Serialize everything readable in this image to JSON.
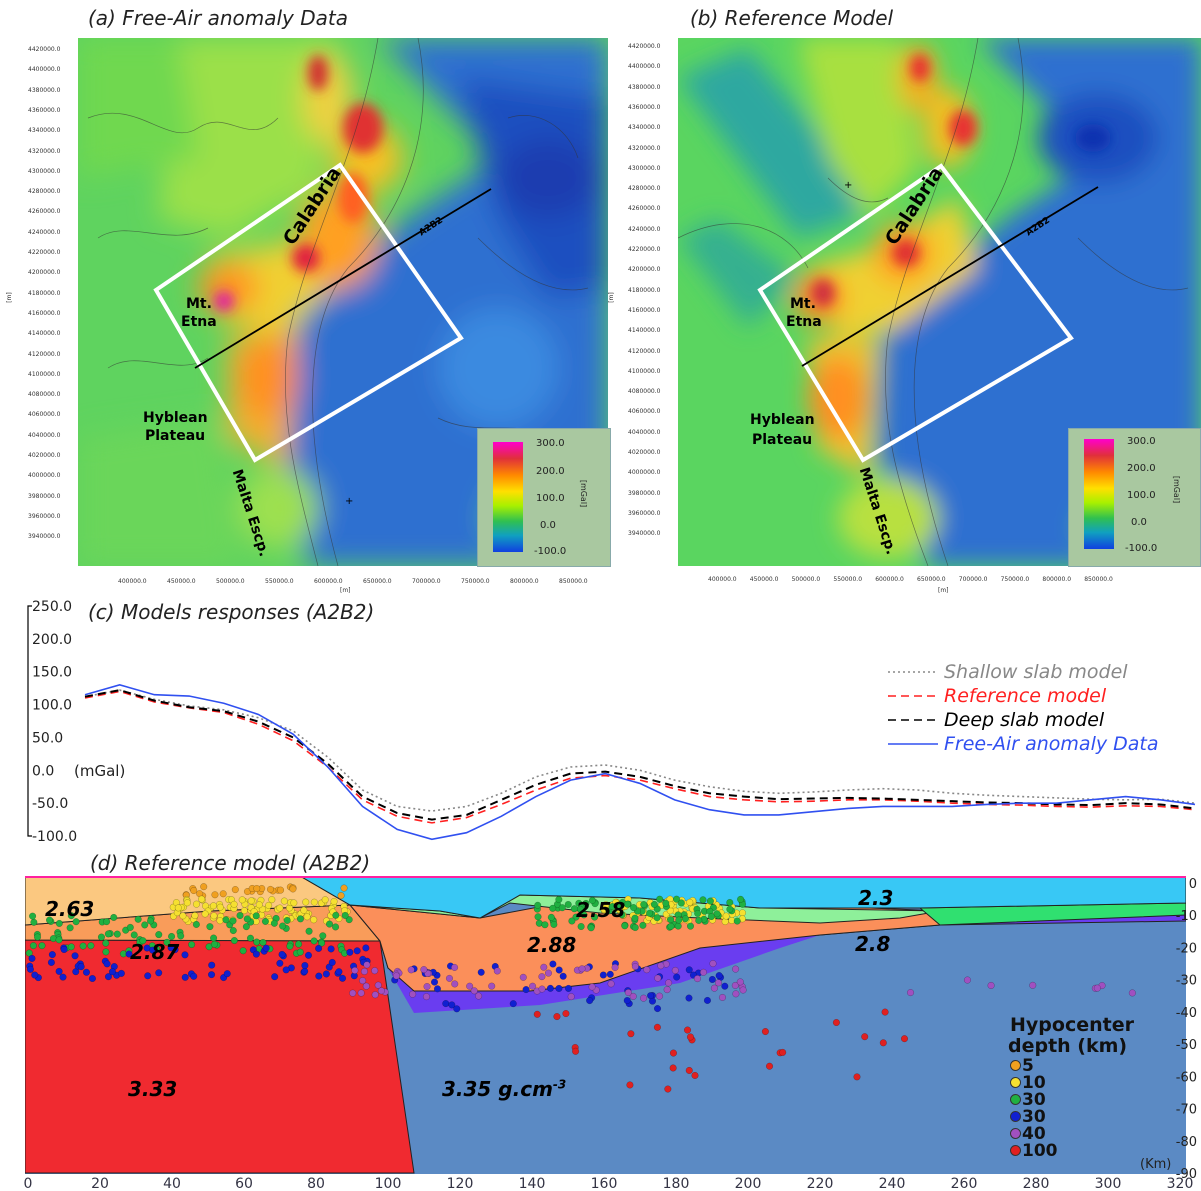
{
  "panel_a": {
    "title": "(a) Free-Air anomaly Data",
    "yticks": [
      "4420000.0",
      "4400000.0",
      "4380000.0",
      "4360000.0",
      "4340000.0",
      "4320000.0",
      "4300000.0",
      "4280000.0",
      "4260000.0",
      "4240000.0",
      "4220000.0",
      "4200000.0",
      "4180000.0",
      "4160000.0",
      "4140000.0",
      "4120000.0",
      "4100000.0",
      "4080000.0",
      "4060000.0",
      "4040000.0",
      "4020000.0",
      "4000000.0",
      "3980000.0",
      "3960000.0",
      "3940000.0"
    ],
    "xticks": [
      "400000.0",
      "450000.0",
      "500000.0",
      "550000.0",
      "600000.0",
      "650000.0",
      "700000.0",
      "750000.0",
      "800000.0",
      "850000.0"
    ],
    "axis_unit": "[m]",
    "labels": {
      "calabria": "Calabria",
      "etna_1": "Mt.",
      "etna_2": "Etna",
      "hyblean_1": "Hyblean",
      "hyblean_2": "Plateau",
      "malta": "Malta Escp.",
      "profile": "A2B2"
    },
    "colorbar": {
      "ticks": [
        "300.0",
        "200.0",
        "100.0",
        "0.0",
        "-100.0"
      ],
      "unit": "[mGal]"
    }
  },
  "panel_b": {
    "title": "(b) Reference Model",
    "yticks": [
      "4420000.0",
      "4400000.0",
      "4380000.0",
      "4360000.0",
      "4340000.0",
      "4320000.0",
      "4300000.0",
      "4280000.0",
      "4260000.0",
      "4240000.0",
      "4220000.0",
      "4200000.0",
      "4180000.0",
      "4160000.0",
      "4140000.0",
      "4120000.0",
      "4100000.0",
      "4080000.0",
      "4060000.0",
      "4040000.0",
      "4020000.0",
      "4000000.0",
      "3980000.0",
      "3960000.0",
      "3940000.0"
    ],
    "xticks": [
      "400000.0",
      "450000.0",
      "500000.0",
      "550000.0",
      "600000.0",
      "650000.0",
      "700000.0",
      "750000.0",
      "800000.0",
      "850000.0"
    ],
    "axis_unit": "[m]",
    "labels": {
      "calabria": "Calabria",
      "etna_1": "Mt.",
      "etna_2": "Etna",
      "hyblean_1": "Hyblean",
      "hyblean_2": "Plateau",
      "malta": "Malta Escp.",
      "profile": "A2B2"
    },
    "colorbar": {
      "ticks": [
        "300.0",
        "200.0",
        "100.0",
        "0.0",
        "-100.0"
      ],
      "unit": "[mGal]"
    }
  },
  "panel_c": {
    "title": "(c) Models responses (A2B2)",
    "yunit": "(mGal)"
  },
  "panel_d": {
    "title": "(d) Reference model (A2B2)",
    "densities": {
      "upper_left": "2.63",
      "mid_left": "2.87",
      "mantle_left": "3.33",
      "upper_right": "2.58",
      "mid_center": "2.88",
      "top_right": "2.3",
      "lower_crust_right": "2.8",
      "mantle_right": "3.35 g.cm",
      "mantle_right_exp": "-3"
    },
    "legend_title_1": "Hypocenter",
    "legend_title_2": "depth (km)",
    "legend_items": [
      {
        "label": "5",
        "color": "#f0a020"
      },
      {
        "label": "10",
        "color": "#f5e030"
      },
      {
        "label": "30",
        "color": "#20b040"
      },
      {
        "label": "30",
        "color": "#1020d0"
      },
      {
        "label": "40",
        "color": "#a050c0"
      },
      {
        "label": "100",
        "color": "#e02020"
      }
    ],
    "xunit": "(Km)"
  },
  "chart_data": [
    {
      "type": "line",
      "title": "(c) Models responses (A2B2)",
      "ylabel": "(mGal)",
      "ylim": [
        -100,
        250
      ],
      "yticks": [
        "250.0",
        "200.0",
        "150.0",
        "100.0",
        "50.0",
        "0.0",
        "-50.0",
        "-100.0"
      ],
      "legend_position": "right",
      "x": [
        0,
        10,
        20,
        30,
        40,
        50,
        60,
        70,
        80,
        90,
        100,
        110,
        120,
        130,
        140,
        150,
        160,
        170,
        180,
        190,
        200,
        210,
        220,
        230,
        240,
        250,
        260,
        270,
        280,
        290,
        300,
        310,
        320
      ],
      "series": [
        {
          "name": "Shallow slab model",
          "color": "#888888",
          "style": "dotted",
          "values": [
            112,
            122,
            108,
            98,
            92,
            80,
            60,
            20,
            -30,
            -55,
            -62,
            -55,
            -35,
            -10,
            5,
            8,
            0,
            -15,
            -25,
            -32,
            -35,
            -33,
            -30,
            -28,
            -30,
            -35,
            -38,
            -40,
            -42,
            -44,
            -45,
            -44,
            -50
          ]
        },
        {
          "name": "Reference model",
          "color": "#ff2020",
          "style": "dashed",
          "values": [
            110,
            120,
            104,
            95,
            88,
            70,
            45,
            5,
            -45,
            -70,
            -80,
            -72,
            -52,
            -30,
            -12,
            -8,
            -15,
            -28,
            -40,
            -45,
            -48,
            -47,
            -45,
            -45,
            -47,
            -50,
            -52,
            -53,
            -55,
            -56,
            -54,
            -55,
            -60
          ]
        },
        {
          "name": "Deep slab model",
          "color": "#000000",
          "style": "dashed",
          "values": [
            112,
            122,
            106,
            96,
            90,
            74,
            50,
            10,
            -40,
            -65,
            -75,
            -68,
            -45,
            -22,
            -5,
            -2,
            -10,
            -24,
            -35,
            -40,
            -44,
            -43,
            -42,
            -43,
            -45,
            -47,
            -49,
            -50,
            -52,
            -53,
            -50,
            -52,
            -58
          ]
        },
        {
          "name": "Free-Air anomaly Data",
          "color": "#3050f0",
          "style": "solid",
          "values": [
            115,
            130,
            115,
            113,
            102,
            85,
            55,
            5,
            -55,
            -90,
            -105,
            -95,
            -70,
            -40,
            -15,
            -5,
            -20,
            -45,
            -60,
            -68,
            -68,
            -63,
            -58,
            -55,
            -55,
            -55,
            -52,
            -50,
            -50,
            -45,
            -40,
            -45,
            -52
          ]
        }
      ]
    },
    {
      "type": "scatter",
      "title": "(d) Reference model (A2B2)",
      "xlabel": "(Km)",
      "xlim": [
        0,
        320
      ],
      "ylim": [
        -90,
        0
      ],
      "xticks": [
        "0",
        "20",
        "40",
        "60",
        "80",
        "100",
        "120",
        "140",
        "160",
        "180",
        "200",
        "220",
        "240",
        "260",
        "280",
        "300",
        "320"
      ],
      "yticks": [
        "0",
        "-10",
        "-20",
        "-30",
        "-40",
        "-50",
        "-60",
        "-70",
        "-80",
        "-90"
      ]
    }
  ]
}
